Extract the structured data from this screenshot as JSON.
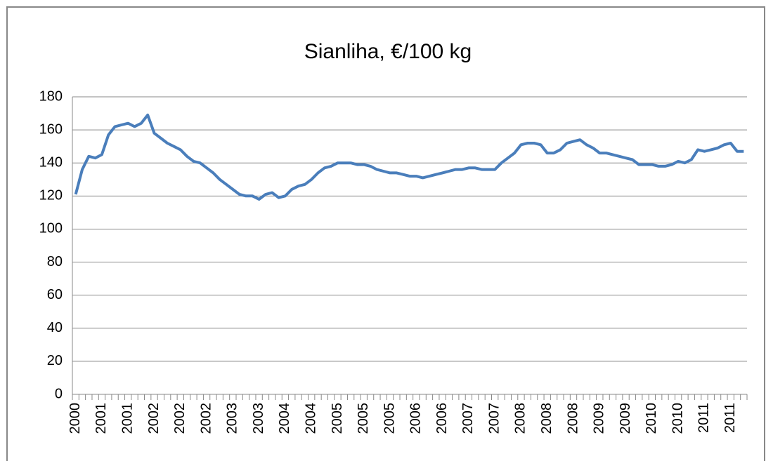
{
  "chart_data": {
    "type": "line",
    "title": "Sianliha, €/100 kg",
    "categories": [
      "2000",
      null,
      null,
      null,
      "2001",
      null,
      null,
      null,
      "2001",
      null,
      null,
      null,
      "2002",
      null,
      null,
      null,
      "2002",
      null,
      null,
      null,
      "2002",
      null,
      null,
      null,
      "2003",
      null,
      null,
      null,
      "2003",
      null,
      null,
      null,
      "2004",
      null,
      null,
      null,
      "2004",
      null,
      null,
      null,
      "2005",
      null,
      null,
      null,
      "2005",
      null,
      null,
      null,
      "2005",
      null,
      null,
      null,
      "2006",
      null,
      null,
      null,
      "2006",
      null,
      null,
      null,
      "2007",
      null,
      null,
      null,
      "2007",
      null,
      null,
      null,
      "2008",
      null,
      null,
      null,
      "2008",
      null,
      null,
      null,
      "2008",
      null,
      null,
      null,
      "2009",
      null,
      null,
      null,
      "2009",
      null,
      null,
      null,
      "2010",
      null,
      null,
      null,
      "2010",
      null,
      null,
      null,
      "2011",
      null,
      null,
      null,
      "2011",
      null,
      null
    ],
    "series": [
      {
        "name": "Sianliha",
        "color": "#4a7ebb",
        "values": [
          121,
          136,
          144,
          143,
          145,
          157,
          162,
          163,
          164,
          162,
          164,
          169,
          158,
          155,
          152,
          150,
          148,
          144,
          141,
          140,
          137,
          134,
          130,
          127,
          124,
          121,
          120,
          120,
          118,
          121,
          122,
          119,
          120,
          124,
          126,
          127,
          130,
          134,
          137,
          138,
          140,
          140,
          140,
          139,
          139,
          138,
          136,
          135,
          134,
          134,
          133,
          132,
          132,
          131,
          132,
          133,
          134,
          135,
          136,
          136,
          137,
          137,
          136,
          136,
          136,
          140,
          143,
          146,
          151,
          152,
          152,
          151,
          146,
          146,
          148,
          152,
          153,
          154,
          151,
          149,
          146,
          146,
          145,
          144,
          143,
          142,
          139,
          139,
          139,
          138,
          138,
          139,
          141,
          140,
          142,
          148,
          147,
          148,
          149,
          151,
          152,
          147,
          147
        ]
      }
    ],
    "ylim": [
      0,
      180
    ],
    "yticks": [
      0,
      20,
      40,
      60,
      80,
      100,
      120,
      140,
      160,
      180
    ],
    "grid": true,
    "legend": false
  }
}
